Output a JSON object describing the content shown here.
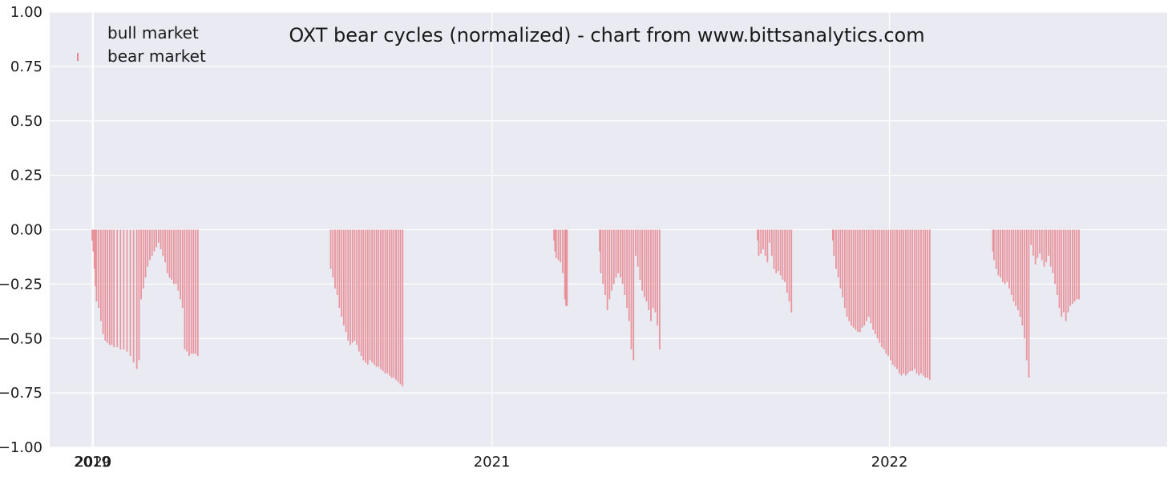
{
  "chart_data": {
    "type": "bar",
    "title": "OXT bear cycles (normalized)  - chart from www.bittsanalytics.com",
    "xlabel": "",
    "ylabel": "",
    "ylim": [
      -1.0,
      1.0
    ],
    "yticks": [
      -1.0,
      -0.75,
      -0.5,
      -0.25,
      0.0,
      0.25,
      0.5,
      0.75,
      1.0
    ],
    "yticklabels": [
      "−1.00",
      "−0.75",
      "−0.50",
      "−0.25",
      "0.00",
      "0.25",
      "0.50",
      "0.75",
      "1.00"
    ],
    "xticks": [
      {
        "date": "2019-12-31",
        "label": "2019"
      },
      {
        "date": "2020-01-01",
        "label": "2020"
      },
      {
        "date": "2021-01-01",
        "label": "2021"
      },
      {
        "date": "2022-01-01",
        "label": "2022"
      }
    ],
    "xlim": [
      "2019-11-22",
      "2022-09-13"
    ],
    "grid": true,
    "legend": {
      "placement": "top-left",
      "entries": [
        {
          "label": "bull market",
          "color": "#2ca02c"
        },
        {
          "label": "bear market",
          "color": "#e8868f"
        }
      ]
    },
    "colors": {
      "background": "#eaeaf2",
      "grid": "#ffffff",
      "bull": "#2ca02c",
      "bear": "#e8868f"
    },
    "series": [
      {
        "name": "bull market",
        "points": []
      },
      {
        "name": "bear market",
        "points": [
          [
            "2019-12-31",
            -0.05
          ],
          [
            "2020-01-01",
            -0.1
          ],
          [
            "2020-01-02",
            -0.18
          ],
          [
            "2020-01-03",
            -0.26
          ],
          [
            "2020-01-04",
            -0.33
          ],
          [
            "2020-01-06",
            -0.36
          ],
          [
            "2020-01-08",
            -0.42
          ],
          [
            "2020-01-10",
            -0.48
          ],
          [
            "2020-01-12",
            -0.51
          ],
          [
            "2020-01-14",
            -0.52
          ],
          [
            "2020-01-16",
            -0.53
          ],
          [
            "2020-01-18",
            -0.53
          ],
          [
            "2020-01-20",
            -0.54
          ],
          [
            "2020-01-23",
            -0.54
          ],
          [
            "2020-01-26",
            -0.55
          ],
          [
            "2020-01-29",
            -0.55
          ],
          [
            "2020-02-01",
            -0.56
          ],
          [
            "2020-02-04",
            -0.58
          ],
          [
            "2020-02-07",
            -0.61
          ],
          [
            "2020-02-10",
            -0.64
          ],
          [
            "2020-02-12",
            -0.6
          ],
          [
            "2020-02-14",
            -0.32
          ],
          [
            "2020-02-16",
            -0.27
          ],
          [
            "2020-02-18",
            -0.22
          ],
          [
            "2020-02-20",
            -0.17
          ],
          [
            "2020-02-22",
            -0.14
          ],
          [
            "2020-02-24",
            -0.12
          ],
          [
            "2020-02-26",
            -0.1
          ],
          [
            "2020-02-28",
            -0.08
          ],
          [
            "2020-03-01",
            -0.06
          ],
          [
            "2020-03-03",
            -0.09
          ],
          [
            "2020-03-05",
            -0.12
          ],
          [
            "2020-03-07",
            -0.15
          ],
          [
            "2020-03-09",
            -0.2
          ],
          [
            "2020-03-11",
            -0.22
          ],
          [
            "2020-03-13",
            -0.23
          ],
          [
            "2020-03-15",
            -0.25
          ],
          [
            "2020-03-17",
            -0.25
          ],
          [
            "2020-03-19",
            -0.28
          ],
          [
            "2020-03-21",
            -0.32
          ],
          [
            "2020-03-23",
            -0.36
          ],
          [
            "2020-03-25",
            -0.55
          ],
          [
            "2020-03-27",
            -0.56
          ],
          [
            "2020-03-29",
            -0.58
          ],
          [
            "2020-03-31",
            -0.57
          ],
          [
            "2020-04-02",
            -0.57
          ],
          [
            "2020-04-04",
            -0.57
          ],
          [
            "2020-04-06",
            -0.58
          ],
          [
            "2020-08-06",
            -0.18
          ],
          [
            "2020-08-08",
            -0.22
          ],
          [
            "2020-08-10",
            -0.27
          ],
          [
            "2020-08-12",
            -0.3
          ],
          [
            "2020-08-14",
            -0.36
          ],
          [
            "2020-08-16",
            -0.4
          ],
          [
            "2020-08-18",
            -0.44
          ],
          [
            "2020-08-20",
            -0.47
          ],
          [
            "2020-08-22",
            -0.51
          ],
          [
            "2020-08-24",
            -0.53
          ],
          [
            "2020-08-26",
            -0.52
          ],
          [
            "2020-08-28",
            -0.51
          ],
          [
            "2020-08-30",
            -0.53
          ],
          [
            "2020-09-01",
            -0.56
          ],
          [
            "2020-09-03",
            -0.58
          ],
          [
            "2020-09-05",
            -0.6
          ],
          [
            "2020-09-07",
            -0.61
          ],
          [
            "2020-09-09",
            -0.62
          ],
          [
            "2020-09-11",
            -0.6
          ],
          [
            "2020-09-13",
            -0.61
          ],
          [
            "2020-09-15",
            -0.62
          ],
          [
            "2020-09-17",
            -0.63
          ],
          [
            "2020-09-19",
            -0.63
          ],
          [
            "2020-09-21",
            -0.64
          ],
          [
            "2020-09-23",
            -0.65
          ],
          [
            "2020-09-25",
            -0.66
          ],
          [
            "2020-09-27",
            -0.66
          ],
          [
            "2020-09-29",
            -0.67
          ],
          [
            "2020-10-01",
            -0.68
          ],
          [
            "2020-10-03",
            -0.68
          ],
          [
            "2020-10-05",
            -0.69
          ],
          [
            "2020-10-07",
            -0.7
          ],
          [
            "2020-10-09",
            -0.71
          ],
          [
            "2020-10-11",
            -0.72
          ],
          [
            "2021-02-27",
            -0.05
          ],
          [
            "2021-02-28",
            -0.1
          ],
          [
            "2021-03-01",
            -0.13
          ],
          [
            "2021-03-03",
            -0.14
          ],
          [
            "2021-03-05",
            -0.15
          ],
          [
            "2021-03-07",
            -0.2
          ],
          [
            "2021-03-09",
            -0.32
          ],
          [
            "2021-03-10",
            -0.35
          ],
          [
            "2021-03-11",
            -0.35
          ],
          [
            "2021-04-10",
            -0.1
          ],
          [
            "2021-04-11",
            -0.2
          ],
          [
            "2021-04-13",
            -0.25
          ],
          [
            "2021-04-15",
            -0.3
          ],
          [
            "2021-04-17",
            -0.37
          ],
          [
            "2021-04-19",
            -0.32
          ],
          [
            "2021-04-21",
            -0.28
          ],
          [
            "2021-04-23",
            -0.25
          ],
          [
            "2021-04-25",
            -0.22
          ],
          [
            "2021-04-27",
            -0.2
          ],
          [
            "2021-04-29",
            -0.22
          ],
          [
            "2021-05-01",
            -0.25
          ],
          [
            "2021-05-03",
            -0.3
          ],
          [
            "2021-05-05",
            -0.36
          ],
          [
            "2021-05-07",
            -0.42
          ],
          [
            "2021-05-09",
            -0.55
          ],
          [
            "2021-05-11",
            -0.6
          ],
          [
            "2021-05-13",
            -0.12
          ],
          [
            "2021-05-15",
            -0.17
          ],
          [
            "2021-05-17",
            -0.23
          ],
          [
            "2021-05-19",
            -0.28
          ],
          [
            "2021-05-21",
            -0.31
          ],
          [
            "2021-05-23",
            -0.33
          ],
          [
            "2021-05-25",
            -0.37
          ],
          [
            "2021-05-27",
            -0.42
          ],
          [
            "2021-05-29",
            -0.36
          ],
          [
            "2021-05-31",
            -0.38
          ],
          [
            "2021-06-02",
            -0.44
          ],
          [
            "2021-06-04",
            -0.55
          ],
          [
            "2021-09-02",
            -0.05
          ],
          [
            "2021-09-03",
            -0.12
          ],
          [
            "2021-09-05",
            -0.11
          ],
          [
            "2021-09-07",
            -0.09
          ],
          [
            "2021-09-09",
            -0.12
          ],
          [
            "2021-09-11",
            -0.15
          ],
          [
            "2021-09-13",
            -0.06
          ],
          [
            "2021-09-15",
            -0.12
          ],
          [
            "2021-09-17",
            -0.18
          ],
          [
            "2021-09-19",
            -0.2
          ],
          [
            "2021-09-21",
            -0.19
          ],
          [
            "2021-09-23",
            -0.21
          ],
          [
            "2021-09-25",
            -0.23
          ],
          [
            "2021-09-27",
            -0.24
          ],
          [
            "2021-09-29",
            -0.29
          ],
          [
            "2021-10-01",
            -0.33
          ],
          [
            "2021-10-03",
            -0.38
          ],
          [
            "2021-11-10",
            -0.05
          ],
          [
            "2021-11-11",
            -0.12
          ],
          [
            "2021-11-13",
            -0.18
          ],
          [
            "2021-11-15",
            -0.22
          ],
          [
            "2021-11-17",
            -0.27
          ],
          [
            "2021-11-19",
            -0.31
          ],
          [
            "2021-11-21",
            -0.36
          ],
          [
            "2021-11-23",
            -0.4
          ],
          [
            "2021-11-25",
            -0.42
          ],
          [
            "2021-11-27",
            -0.44
          ],
          [
            "2021-11-29",
            -0.45
          ],
          [
            "2021-12-01",
            -0.46
          ],
          [
            "2021-12-03",
            -0.47
          ],
          [
            "2021-12-05",
            -0.47
          ],
          [
            "2021-12-07",
            -0.45
          ],
          [
            "2021-12-09",
            -0.44
          ],
          [
            "2021-12-11",
            -0.42
          ],
          [
            "2021-12-13",
            -0.4
          ],
          [
            "2021-12-15",
            -0.43
          ],
          [
            "2021-12-17",
            -0.46
          ],
          [
            "2021-12-19",
            -0.48
          ],
          [
            "2021-12-21",
            -0.5
          ],
          [
            "2021-12-23",
            -0.52
          ],
          [
            "2021-12-25",
            -0.54
          ],
          [
            "2021-12-27",
            -0.55
          ],
          [
            "2021-12-29",
            -0.57
          ],
          [
            "2021-12-31",
            -0.58
          ],
          [
            "2022-01-02",
            -0.6
          ],
          [
            "2022-01-04",
            -0.62
          ],
          [
            "2022-01-06",
            -0.63
          ],
          [
            "2022-01-08",
            -0.64
          ],
          [
            "2022-01-10",
            -0.66
          ],
          [
            "2022-01-12",
            -0.67
          ],
          [
            "2022-01-14",
            -0.66
          ],
          [
            "2022-01-16",
            -0.67
          ],
          [
            "2022-01-18",
            -0.66
          ],
          [
            "2022-01-20",
            -0.65
          ],
          [
            "2022-01-22",
            -0.65
          ],
          [
            "2022-01-24",
            -0.64
          ],
          [
            "2022-01-26",
            -0.66
          ],
          [
            "2022-01-28",
            -0.67
          ],
          [
            "2022-01-30",
            -0.66
          ],
          [
            "2022-02-01",
            -0.67
          ],
          [
            "2022-02-03",
            -0.68
          ],
          [
            "2022-02-05",
            -0.68
          ],
          [
            "2022-02-07",
            -0.69
          ],
          [
            "2022-04-06",
            -0.1
          ],
          [
            "2022-04-07",
            -0.14
          ],
          [
            "2022-04-09",
            -0.18
          ],
          [
            "2022-04-11",
            -0.21
          ],
          [
            "2022-04-13",
            -0.22
          ],
          [
            "2022-04-15",
            -0.24
          ],
          [
            "2022-04-17",
            -0.25
          ],
          [
            "2022-04-19",
            -0.24
          ],
          [
            "2022-04-21",
            -0.27
          ],
          [
            "2022-04-23",
            -0.3
          ],
          [
            "2022-04-25",
            -0.33
          ],
          [
            "2022-04-27",
            -0.35
          ],
          [
            "2022-04-29",
            -0.37
          ],
          [
            "2022-05-01",
            -0.4
          ],
          [
            "2022-05-03",
            -0.44
          ],
          [
            "2022-05-05",
            -0.5
          ],
          [
            "2022-05-07",
            -0.6
          ],
          [
            "2022-05-09",
            -0.68
          ],
          [
            "2022-05-11",
            -0.07
          ],
          [
            "2022-05-13",
            -0.12
          ],
          [
            "2022-05-15",
            -0.16
          ],
          [
            "2022-05-17",
            -0.13
          ],
          [
            "2022-05-19",
            -0.11
          ],
          [
            "2022-05-21",
            -0.14
          ],
          [
            "2022-05-23",
            -0.17
          ],
          [
            "2022-05-25",
            -0.15
          ],
          [
            "2022-05-27",
            -0.12
          ],
          [
            "2022-05-29",
            -0.17
          ],
          [
            "2022-05-31",
            -0.2
          ],
          [
            "2022-06-02",
            -0.25
          ],
          [
            "2022-06-04",
            -0.3
          ],
          [
            "2022-06-06",
            -0.36
          ],
          [
            "2022-06-08",
            -0.4
          ],
          [
            "2022-06-10",
            -0.38
          ],
          [
            "2022-06-12",
            -0.42
          ],
          [
            "2022-06-14",
            -0.38
          ],
          [
            "2022-06-16",
            -0.35
          ],
          [
            "2022-06-18",
            -0.34
          ],
          [
            "2022-06-20",
            -0.33
          ],
          [
            "2022-06-22",
            -0.32
          ],
          [
            "2022-06-24",
            -0.32
          ]
        ]
      }
    ]
  }
}
